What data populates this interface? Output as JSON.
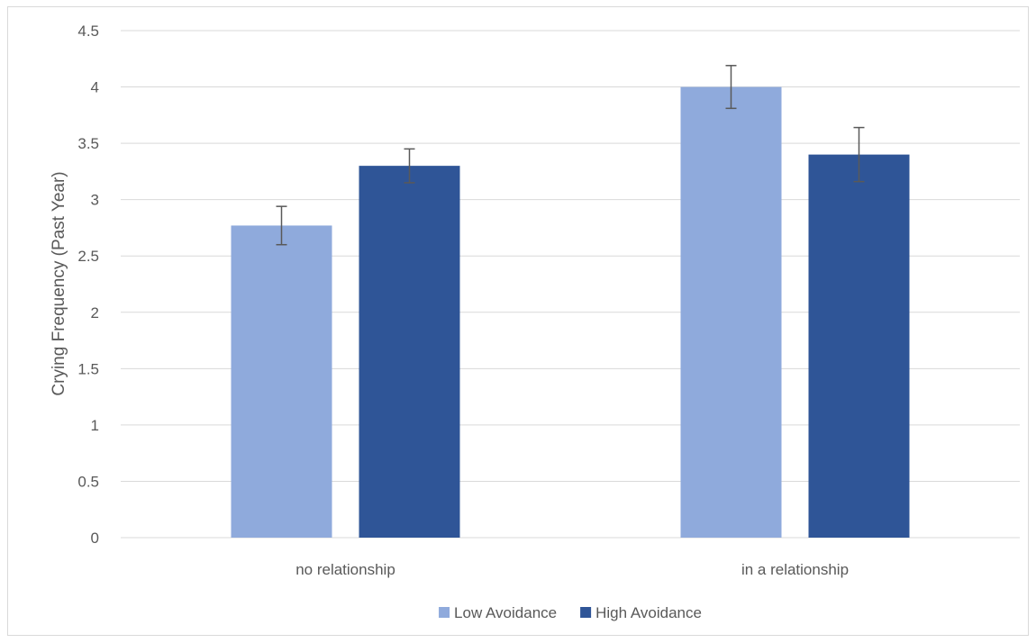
{
  "chart_data": {
    "type": "bar",
    "title": "",
    "xlabel": "",
    "ylabel": "Crying Frequency (Past Year)",
    "ylim": [
      0,
      4.5
    ],
    "yticks": [
      "0",
      "0.5",
      "1",
      "1.5",
      "2",
      "2.5",
      "3",
      "3.5",
      "4",
      "4.5"
    ],
    "categories": [
      "no relationship",
      "in a relationship"
    ],
    "grid": true,
    "legend_position": "bottom",
    "series": [
      {
        "name": "Low Avoidance",
        "color": "#8faadc",
        "values": [
          2.77,
          4.0
        ],
        "error": [
          0.17,
          0.19
        ]
      },
      {
        "name": "High Avoidance",
        "color": "#2f5597",
        "values": [
          3.3,
          3.4
        ],
        "error": [
          0.15,
          0.24
        ]
      }
    ]
  }
}
